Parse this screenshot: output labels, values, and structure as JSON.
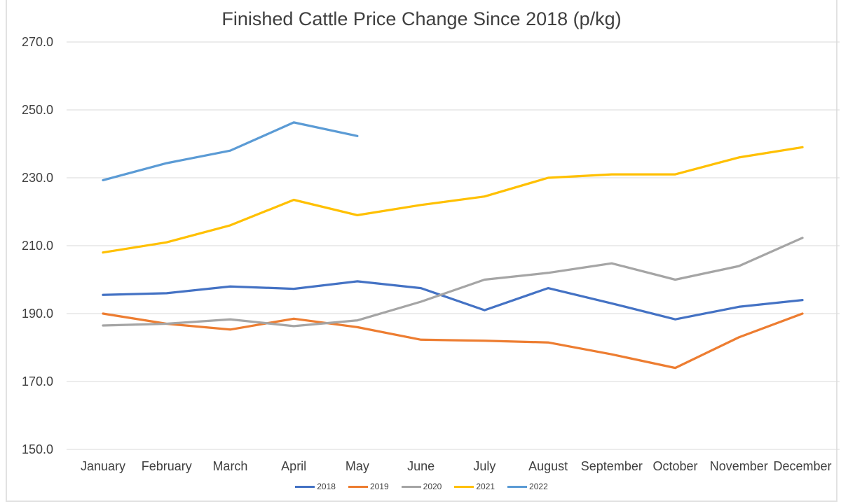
{
  "chart_data": {
    "type": "line",
    "title": "Finished Cattle Price Change Since 2018 (p/kg)",
    "xlabel": "",
    "ylabel": "",
    "categories": [
      "January",
      "February",
      "March",
      "April",
      "May",
      "June",
      "July",
      "August",
      "September",
      "October",
      "November",
      "December"
    ],
    "series": [
      {
        "name": "2018",
        "color": "#4472C4",
        "values": [
          195.5,
          196.0,
          198.0,
          197.3,
          199.5,
          197.5,
          191.0,
          197.5,
          193.0,
          188.3,
          192.0,
          194.0
        ]
      },
      {
        "name": "2019",
        "color": "#ED7D31",
        "values": [
          190.0,
          187.0,
          185.3,
          188.5,
          186.0,
          182.3,
          182.0,
          181.5,
          178.0,
          174.0,
          183.0,
          190.0
        ]
      },
      {
        "name": "2020",
        "color": "#A5A5A5",
        "values": [
          186.5,
          187.0,
          188.3,
          186.3,
          188.0,
          193.5,
          200.0,
          202.0,
          204.8,
          200.0,
          204.0,
          212.3
        ]
      },
      {
        "name": "2021",
        "color": "#FFC000",
        "values": [
          208.0,
          211.0,
          216.0,
          223.5,
          219.0,
          222.0,
          224.5,
          230.0,
          231.0,
          231.0,
          236.0,
          239.0
        ]
      },
      {
        "name": "2022",
        "color": "#5B9BD5",
        "values": [
          229.3,
          234.3,
          238.0,
          246.3,
          242.3,
          null,
          null,
          null,
          null,
          null,
          null,
          null
        ]
      }
    ],
    "yticks": [
      {
        "value": 270,
        "label": "270.0"
      },
      {
        "value": 250,
        "label": "250.0"
      },
      {
        "value": 230,
        "label": "230.0"
      },
      {
        "value": 210,
        "label": "210.0"
      },
      {
        "value": 190,
        "label": "190.0"
      },
      {
        "value": 170,
        "label": "170.0"
      },
      {
        "value": 150,
        "label": "150.0"
      }
    ],
    "ylim": [
      150,
      270
    ],
    "grid": true,
    "gridline_color": "#d9d9d9",
    "legend_position": "bottom"
  }
}
